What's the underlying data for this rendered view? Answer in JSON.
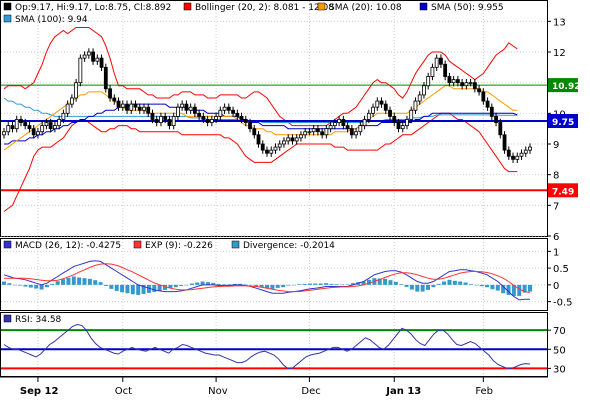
{
  "colors": {
    "bollinger": "#ff0000",
    "sma20": "#ff9900",
    "sma50": "#0000cc",
    "sma100": "#3399dd",
    "green_line": "#008800",
    "blue_line": "#0000cc",
    "red_line": "#ff0000",
    "macd": "#3333cc",
    "signal": "#ff3333",
    "divergence": "#3399cc",
    "rsi": "#3333aa",
    "candle_bull": "#ffffff",
    "candle_bear": "#000000"
  },
  "price_panel": {
    "legend": [
      {
        "label": "Op:9.17, Hi:9.17, Lo:8.75, Cl:8.892",
        "color": "#000000"
      },
      {
        "label": "Bollinger (20, 2): 8.081 - 12.08",
        "color": "#ff0000"
      },
      {
        "label": "SMA (20): 10.08",
        "color": "#ff9900"
      },
      {
        "label": "SMA (50): 9.955",
        "color": "#0000cc"
      },
      {
        "label": "SMA (100): 9.94",
        "color": "#3399dd"
      }
    ],
    "y_ticks": [
      "13",
      "12",
      "11",
      "10",
      "9",
      "8",
      "7",
      "6"
    ],
    "ylim": [
      6,
      13.5
    ],
    "badges": [
      {
        "value": "10.92",
        "bg": "#008800",
        "fg": "#ffffff"
      },
      {
        "value": "9.75",
        "bg": "#0000cc",
        "fg": "#ffffff"
      },
      {
        "value": "7.49",
        "bg": "#ff0000",
        "fg": "#ffffff"
      }
    ]
  },
  "macd_panel": {
    "legend": [
      {
        "label": "MACD (26, 12): -0.4275",
        "color": "#3333cc"
      },
      {
        "label": "EXP (9): -0.226",
        "color": "#ff3333"
      },
      {
        "label": "Divergence: -0.2014",
        "color": "#3399cc"
      }
    ],
    "y_ticks": [
      "1",
      "0.5",
      "0",
      "-0.5"
    ],
    "ylim": [
      -0.75,
      1.1
    ]
  },
  "rsi_panel": {
    "legend": [
      {
        "label": "RSI: 34.58",
        "color": "#3333aa"
      }
    ],
    "y_ticks": [
      "70",
      "50",
      "30"
    ],
    "ylim": [
      22,
      88
    ]
  },
  "x_axis": {
    "labels": [
      "Sep 12",
      "Oct",
      "Nov",
      "Dec",
      "Jan 13",
      "Feb"
    ]
  },
  "chart_data": {
    "type": "line",
    "title": "",
    "xlabel": "",
    "ylabel": "",
    "x_count": 130,
    "close": [
      9.4,
      9.6,
      9.5,
      9.8,
      9.7,
      9.6,
      9.5,
      9.3,
      9.4,
      9.6,
      9.7,
      9.5,
      9.6,
      9.8,
      10.0,
      10.3,
      10.5,
      11.0,
      11.8,
      11.9,
      12.0,
      11.7,
      11.8,
      11.5,
      10.8,
      10.5,
      10.4,
      10.2,
      10.3,
      10.1,
      10.3,
      10.2,
      10.1,
      10.2,
      10.0,
      9.8,
      9.7,
      9.9,
      9.8,
      9.6,
      9.9,
      10.2,
      10.3,
      10.1,
      10.2,
      10.0,
      9.9,
      9.8,
      9.7,
      9.8,
      9.9,
      10.1,
      10.2,
      10.1,
      10.0,
      9.9,
      9.8,
      9.7,
      9.5,
      9.3,
      9.0,
      8.8,
      8.7,
      8.8,
      8.9,
      9.0,
      9.1,
      9.2,
      9.1,
      9.2,
      9.3,
      9.4,
      9.4,
      9.5,
      9.4,
      9.3,
      9.5,
      9.6,
      9.7,
      9.8,
      9.6,
      9.5,
      9.3,
      9.4,
      9.6,
      9.8,
      10.0,
      10.2,
      10.4,
      10.3,
      10.1,
      9.9,
      9.7,
      9.5,
      9.6,
      9.8,
      10.1,
      10.4,
      10.6,
      10.9,
      11.2,
      11.5,
      11.8,
      11.6,
      11.2,
      11.0,
      11.1,
      11.0,
      10.9,
      11.0,
      11.0,
      10.8,
      10.7,
      10.4,
      10.2,
      9.9,
      9.7,
      9.3,
      8.8,
      8.6,
      8.5,
      8.6,
      8.7,
      8.8,
      8.9
    ],
    "bollinger_upper": [
      10.8,
      10.9,
      10.9,
      10.9,
      10.9,
      10.8,
      10.9,
      11.0,
      11.3,
      11.6,
      12.0,
      12.3,
      12.5,
      12.6,
      12.7,
      12.6,
      12.7,
      12.8,
      12.8,
      12.8,
      12.8,
      12.7,
      12.6,
      12.5,
      12.2,
      11.8,
      11.3,
      10.9,
      10.9,
      10.8,
      10.8,
      10.8,
      10.8,
      10.7,
      10.6,
      10.6,
      10.5,
      10.5,
      10.5,
      10.5,
      10.6,
      10.6,
      10.7,
      10.7,
      10.7,
      10.6,
      10.6,
      10.6,
      10.5,
      10.5,
      10.5,
      10.6,
      10.6,
      10.6,
      10.6,
      10.6,
      10.5,
      10.5,
      10.6,
      10.7,
      10.7,
      10.6,
      10.5,
      10.3,
      10.1,
      9.9,
      9.8,
      9.7,
      9.6,
      9.6,
      9.6,
      9.6,
      9.6,
      9.6,
      9.6,
      9.6,
      9.6,
      9.7,
      9.8,
      9.9,
      10.0,
      10.0,
      10.1,
      10.2,
      10.4,
      10.6,
      10.8,
      11.0,
      11.1,
      11.0,
      11.0,
      10.9,
      10.8,
      10.6,
      10.5,
      10.7,
      11.0,
      11.3,
      11.5,
      11.7,
      11.9,
      12.0,
      12.0,
      12.0,
      11.9,
      11.7,
      11.6,
      11.5,
      11.4,
      11.3,
      11.2,
      11.1,
      11.2,
      11.3,
      11.5,
      11.7,
      11.9,
      12.0,
      12.1,
      12.3,
      12.2,
      12.1
    ],
    "bollinger_lower": [
      6.8,
      6.9,
      7.0,
      7.3,
      7.6,
      7.9,
      8.2,
      8.6,
      8.8,
      8.9,
      8.9,
      8.9,
      9.0,
      9.1,
      9.2,
      9.4,
      9.6,
      9.7,
      9.8,
      9.8,
      9.7,
      9.6,
      9.5,
      9.4,
      9.4,
      9.5,
      9.5,
      9.6,
      9.6,
      9.6,
      9.5,
      9.5,
      9.4,
      9.4,
      9.4,
      9.4,
      9.4,
      9.4,
      9.4,
      9.4,
      9.4,
      9.4,
      9.3,
      9.3,
      9.3,
      9.3,
      9.3,
      9.3,
      9.3,
      9.3,
      9.3,
      9.3,
      9.2,
      9.2,
      9.1,
      9.0,
      8.8,
      8.6,
      8.5,
      8.4,
      8.4,
      8.4,
      8.4,
      8.4,
      8.5,
      8.6,
      8.7,
      8.8,
      8.9,
      9.0,
      9.0,
      9.0,
      9.0,
      9.0,
      9.0,
      9.0,
      9.0,
      9.0,
      8.9,
      8.9,
      8.9,
      8.8,
      8.8,
      8.8,
      8.8,
      8.8,
      8.8,
      8.8,
      8.8,
      8.9,
      9.0,
      9.0,
      9.1,
      9.2,
      9.3,
      9.3,
      9.3,
      9.4,
      9.5,
      9.6,
      9.7,
      9.8,
      9.9,
      10.0,
      10.0,
      10.0,
      9.9,
      9.8,
      9.8,
      9.7,
      9.6,
      9.5,
      9.4,
      9.2,
      9.0,
      8.8,
      8.6,
      8.4,
      8.2,
      8.1,
      8.1,
      8.1
    ],
    "sma20": [
      8.8,
      8.9,
      9.0,
      9.1,
      9.2,
      9.3,
      9.4,
      9.5,
      9.6,
      9.7,
      9.8,
      9.9,
      10.0,
      10.1,
      10.2,
      10.3,
      10.4,
      10.5,
      10.6,
      10.6,
      10.7,
      10.7,
      10.7,
      10.7,
      10.6,
      10.5,
      10.4,
      10.3,
      10.2,
      10.1,
      10.1,
      10.1,
      10.1,
      10.1,
      10.0,
      10.0,
      10.0,
      10.0,
      10.0,
      10.0,
      10.0,
      10.0,
      10.0,
      9.9,
      9.9,
      9.9,
      9.9,
      9.9,
      9.9,
      9.9,
      9.9,
      9.9,
      9.9,
      9.9,
      9.9,
      9.8,
      9.7,
      9.6,
      9.6,
      9.5,
      9.5,
      9.5,
      9.4,
      9.4,
      9.3,
      9.3,
      9.3,
      9.3,
      9.3,
      9.3,
      9.3,
      9.3,
      9.3,
      9.3,
      9.3,
      9.3,
      9.3,
      9.3,
      9.4,
      9.4,
      9.4,
      9.4,
      9.5,
      9.5,
      9.6,
      9.7,
      9.8,
      9.9,
      10.0,
      10.0,
      10.0,
      10.0,
      10.0,
      10.0,
      10.0,
      10.0,
      10.1,
      10.2,
      10.3,
      10.4,
      10.5,
      10.6,
      10.7,
      10.8,
      10.9,
      10.9,
      10.8,
      10.8,
      10.8,
      10.8,
      10.8,
      10.8,
      10.8,
      10.7,
      10.7,
      10.6,
      10.5,
      10.4,
      10.3,
      10.2,
      10.1,
      10.1
    ],
    "sma50": [
      9.0,
      9.0,
      9.1,
      9.1,
      9.1,
      9.1,
      9.2,
      9.2,
      9.3,
      9.3,
      9.4,
      9.4,
      9.5,
      9.5,
      9.6,
      9.6,
      9.7,
      9.7,
      9.8,
      9.8,
      9.9,
      9.9,
      10.0,
      10.0,
      10.1,
      10.1,
      10.1,
      10.2,
      10.2,
      10.2,
      10.3,
      10.3,
      10.3,
      10.3,
      10.3,
      10.3,
      10.3,
      10.3,
      10.3,
      10.2,
      10.2,
      10.2,
      10.2,
      10.2,
      10.1,
      10.1,
      10.1,
      10.1,
      10.0,
      10.0,
      10.0,
      10.0,
      9.9,
      9.9,
      9.9,
      9.9,
      9.8,
      9.8,
      9.7,
      9.7,
      9.7,
      9.6,
      9.6,
      9.6,
      9.6,
      9.6,
      9.6,
      9.5,
      9.5,
      9.5,
      9.5,
      9.5,
      9.5,
      9.5,
      9.5,
      9.5,
      9.5,
      9.5,
      9.5,
      9.5,
      9.5,
      9.5,
      9.5,
      9.5,
      9.6,
      9.6,
      9.6,
      9.6,
      9.6,
      9.7,
      9.7,
      9.7,
      9.7,
      9.7,
      9.7,
      9.7,
      9.7,
      9.8,
      9.8,
      9.9,
      9.9,
      10.0,
      10.0,
      10.0,
      10.0,
      10.0,
      10.0,
      10.0,
      10.0,
      10.0,
      10.0,
      10.0,
      10.0,
      10.0,
      10.0,
      10.0,
      10.0,
      10.0,
      10.0,
      10.0,
      10.0,
      9.95
    ],
    "sma100": [
      10.5,
      10.4,
      10.4,
      10.3,
      10.3,
      10.2,
      10.2,
      10.1,
      10.1,
      10.0,
      10.0,
      9.95,
      9.9,
      9.9,
      9.9,
      9.9,
      9.9,
      9.9,
      9.9,
      9.9,
      9.9,
      9.9,
      9.9,
      9.9,
      9.9,
      9.9,
      9.9,
      9.9,
      9.9,
      9.9,
      9.9,
      9.9,
      9.9,
      9.9,
      9.9,
      9.9,
      9.9,
      9.9,
      9.9,
      9.9,
      9.9,
      9.9,
      9.9,
      9.9,
      9.85,
      9.85,
      9.85,
      9.85,
      9.8,
      9.8,
      9.8,
      9.8,
      9.8,
      9.8,
      9.8,
      9.8,
      9.75,
      9.75,
      9.75,
      9.75,
      9.75,
      9.7,
      9.7,
      9.7,
      9.7,
      9.7,
      9.7,
      9.7,
      9.7,
      9.7,
      9.7,
      9.7,
      9.7,
      9.7,
      9.7,
      9.7,
      9.7,
      9.7,
      9.7,
      9.7,
      9.7,
      9.7,
      9.7,
      9.7,
      9.7,
      9.7,
      9.75,
      9.75,
      9.75,
      9.75,
      9.8,
      9.8,
      9.8,
      9.8,
      9.8,
      9.8,
      9.85,
      9.85,
      9.85,
      9.9,
      9.9,
      9.9,
      9.95,
      9.95,
      9.95,
      9.95,
      9.95,
      9.95,
      9.95,
      9.95,
      9.95,
      9.95,
      9.95,
      9.95,
      9.95,
      9.95,
      9.95,
      9.94,
      9.94,
      9.94,
      9.94,
      9.94
    ],
    "levels": [
      {
        "value": 10.92,
        "color": "#008800"
      },
      {
        "value": 9.75,
        "color": "#0000cc"
      },
      {
        "value": 7.49,
        "color": "#ff0000"
      }
    ],
    "macd": [
      0.3,
      0.25,
      0.2,
      0.18,
      0.15,
      0.1,
      0.05,
      0.0,
      0.05,
      0.15,
      0.25,
      0.35,
      0.45,
      0.55,
      0.6,
      0.65,
      0.7,
      0.72,
      0.7,
      0.6,
      0.5,
      0.4,
      0.3,
      0.2,
      0.1,
      0.0,
      -0.05,
      -0.1,
      -0.15,
      -0.18,
      -0.2,
      -0.2,
      -0.2,
      -0.18,
      -0.15,
      -0.1,
      -0.05,
      0.0,
      0.0,
      0.0,
      -0.02,
      -0.02,
      -0.02,
      0.0,
      0.0,
      -0.02,
      -0.05,
      -0.1,
      -0.15,
      -0.2,
      -0.25,
      -0.25,
      -0.25,
      -0.22,
      -0.2,
      -0.18,
      -0.15,
      -0.12,
      -0.1,
      -0.08,
      -0.05,
      -0.05,
      -0.05,
      -0.05,
      -0.05,
      0.0,
      0.05,
      0.1,
      0.2,
      0.3,
      0.35,
      0.4,
      0.42,
      0.42,
      0.38,
      0.3,
      0.2,
      0.1,
      0.05,
      0.05,
      0.1,
      0.2,
      0.3,
      0.4,
      0.42,
      0.45,
      0.45,
      0.42,
      0.4,
      0.35,
      0.3,
      0.2,
      0.1,
      -0.05,
      -0.2,
      -0.35,
      -0.45,
      -0.43,
      -0.43
    ],
    "signal": [
      0.2,
      0.2,
      0.2,
      0.2,
      0.2,
      0.18,
      0.16,
      0.14,
      0.12,
      0.12,
      0.14,
      0.18,
      0.24,
      0.3,
      0.38,
      0.45,
      0.52,
      0.58,
      0.62,
      0.63,
      0.62,
      0.58,
      0.52,
      0.45,
      0.38,
      0.3,
      0.22,
      0.14,
      0.06,
      0.0,
      -0.05,
      -0.1,
      -0.13,
      -0.15,
      -0.15,
      -0.14,
      -0.12,
      -0.1,
      -0.08,
      -0.06,
      -0.05,
      -0.04,
      -0.04,
      -0.03,
      -0.03,
      -0.03,
      -0.04,
      -0.05,
      -0.07,
      -0.1,
      -0.13,
      -0.16,
      -0.18,
      -0.2,
      -0.2,
      -0.2,
      -0.18,
      -0.16,
      -0.14,
      -0.12,
      -0.1,
      -0.08,
      -0.07,
      -0.06,
      -0.06,
      -0.05,
      -0.03,
      0.0,
      0.05,
      0.1,
      0.16,
      0.22,
      0.28,
      0.33,
      0.36,
      0.36,
      0.34,
      0.3,
      0.25,
      0.2,
      0.17,
      0.17,
      0.2,
      0.25,
      0.3,
      0.35,
      0.38,
      0.4,
      0.4,
      0.39,
      0.37,
      0.33,
      0.27,
      0.2,
      0.1,
      -0.02,
      -0.12,
      -0.2,
      -0.226
    ],
    "divergence": [
      0.1,
      0.05,
      0.0,
      -0.02,
      -0.05,
      -0.08,
      -0.11,
      -0.14,
      -0.07,
      0.03,
      0.11,
      0.17,
      0.21,
      0.25,
      0.22,
      0.2,
      0.18,
      0.14,
      0.08,
      -0.03,
      -0.12,
      -0.18,
      -0.22,
      -0.25,
      -0.28,
      -0.3,
      -0.27,
      -0.24,
      -0.21,
      -0.18,
      -0.15,
      -0.1,
      -0.07,
      -0.03,
      0.0,
      0.04,
      0.07,
      0.1,
      0.08,
      0.06,
      0.03,
      0.02,
      0.02,
      0.03,
      0.03,
      0.01,
      -0.01,
      -0.05,
      -0.08,
      -0.1,
      -0.12,
      -0.09,
      -0.07,
      -0.02,
      0.0,
      0.02,
      0.03,
      0.04,
      0.04,
      0.04,
      0.05,
      0.03,
      0.02,
      0.01,
      0.01,
      0.05,
      0.08,
      0.1,
      0.15,
      0.2,
      0.19,
      0.18,
      0.14,
      0.09,
      0.02,
      -0.06,
      -0.14,
      -0.2,
      -0.2,
      -0.15,
      -0.07,
      0.03,
      0.1,
      0.15,
      0.12,
      0.1,
      0.07,
      0.02,
      0.0,
      -0.04,
      -0.07,
      -0.13,
      -0.17,
      -0.25,
      -0.3,
      -0.33,
      -0.33,
      -0.23,
      -0.2
    ],
    "rsi": [
      55,
      52,
      50,
      50,
      48,
      46,
      44,
      42,
      45,
      50,
      55,
      58,
      62,
      66,
      70,
      74,
      76,
      75,
      70,
      62,
      56,
      52,
      50,
      48,
      46,
      45,
      48,
      50,
      52,
      50,
      49,
      48,
      50,
      52,
      50,
      48,
      46,
      50,
      52,
      55,
      54,
      52,
      50,
      48,
      46,
      45,
      44,
      44,
      42,
      40,
      38,
      36,
      36,
      38,
      42,
      45,
      47,
      48,
      46,
      44,
      40,
      34,
      30,
      30,
      34,
      38,
      42,
      44,
      45,
      46,
      48,
      50,
      52,
      52,
      50,
      48,
      50,
      54,
      58,
      62,
      60,
      56,
      52,
      50,
      54,
      60,
      66,
      72,
      70,
      66,
      60,
      56,
      54,
      60,
      66,
      70,
      70,
      66,
      60,
      55,
      54,
      56,
      58,
      56,
      52,
      48,
      44,
      38,
      34,
      32,
      30,
      30,
      32,
      34,
      35,
      34.58
    ]
  }
}
